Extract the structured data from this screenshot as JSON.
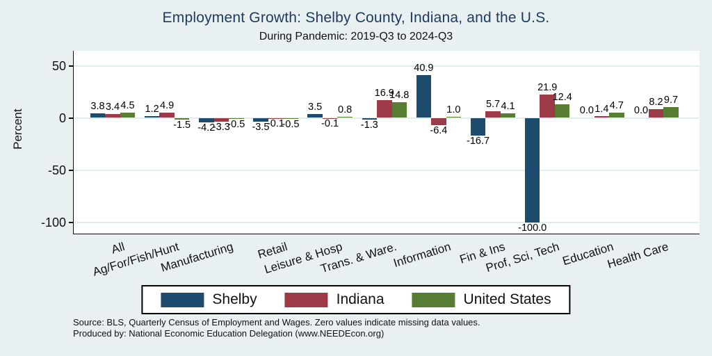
{
  "title": "Employment Growth: Shelby County, Indiana, and the U.S.",
  "subtitle": "During Pandemic: 2019-Q3 to 2024-Q3",
  "chart_data": {
    "type": "bar",
    "categories": [
      "All",
      "Ag/For/Fish/Hunt",
      "Manufacturing",
      "Retail",
      "Leisure & Hosp",
      "Trans. & Ware.",
      "Information",
      "Fin & Ins",
      "Prof, Sci, Tech",
      "Education",
      "Health Care"
    ],
    "series": [
      {
        "name": "Shelby",
        "color": "#1e4c6e",
        "values": [
          3.8,
          1.2,
          -4.2,
          -3.5,
          3.5,
          -1.3,
          40.9,
          -16.7,
          -100.0,
          0.0,
          0.0
        ]
      },
      {
        "name": "Indiana",
        "color": "#9c3b47",
        "values": [
          3.4,
          4.9,
          -3.3,
          -0.1,
          -0.1,
          16.9,
          -6.4,
          5.7,
          21.9,
          1.4,
          8.2
        ]
      },
      {
        "name": "United States",
        "color": "#577d33",
        "values": [
          4.5,
          -1.5,
          -0.5,
          -0.5,
          0.8,
          14.8,
          1.0,
          4.1,
          12.4,
          4.7,
          9.7
        ]
      }
    ],
    "ylabel": "Percent",
    "xlabel": "",
    "yticks": [
      50,
      0,
      -50,
      -100
    ],
    "ylim": [
      -111,
      65
    ],
    "grid": true,
    "legend_position": "bottom",
    "value_labels_decimals": 1
  },
  "colors": {
    "background": "#e8f0f1",
    "plot_background": "#ffffff",
    "gridline": "#e2edef",
    "axis": "#0a0a0a",
    "title": "#1f3a60",
    "text": "#111111"
  },
  "footer": {
    "line1": "Source: BLS, Quarterly Census of Employment and Wages. Zero values indicate missing data values.",
    "line2": "Produced by: National Economic Education Delegation (www.NEEDEcon.org)"
  }
}
